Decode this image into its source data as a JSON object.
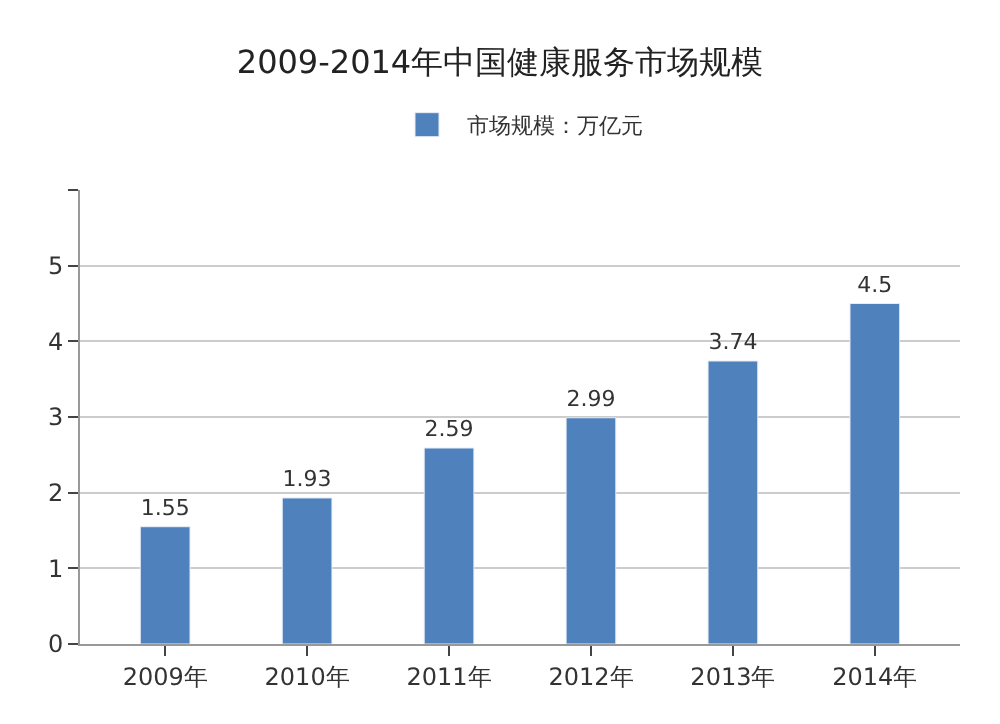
{
  "chart_data": {
    "type": "bar",
    "title": "2009-2014年中国健康服务市场规模",
    "categories": [
      "2009年",
      "2010年",
      "2011年",
      "2012年",
      "2013年",
      "2014年"
    ],
    "series": [
      {
        "name": "市场规模：万亿元",
        "color": "#4f81bd",
        "values": [
          1.55,
          1.93,
          2.59,
          2.99,
          3.74,
          4.5
        ]
      }
    ],
    "ylim": [
      0,
      6
    ],
    "yticks": [
      0,
      1,
      2,
      3,
      4,
      5,
      {
        "value": 6,
        "label": null
      }
    ],
    "grid": "y",
    "legend": "top",
    "data_labels": true
  }
}
